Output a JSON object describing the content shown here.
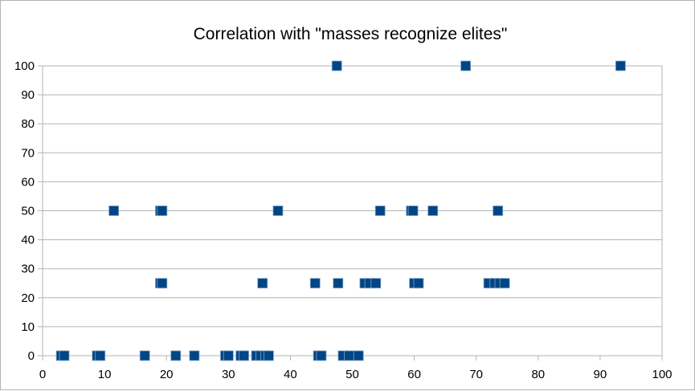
{
  "chart_data": {
    "type": "scatter",
    "title": "Correlation with \"masses recognize elites\"",
    "xlabel": "",
    "ylabel": "",
    "xlim": [
      0,
      100
    ],
    "ylim": [
      0,
      100
    ],
    "x_ticks": [
      0,
      10,
      20,
      30,
      40,
      50,
      60,
      70,
      80,
      90,
      100
    ],
    "y_ticks": [
      0,
      10,
      20,
      30,
      40,
      50,
      60,
      70,
      80,
      90,
      100
    ],
    "grid": "horizontal",
    "legend": "none",
    "marker": "square",
    "series": [
      {
        "color": "#004586",
        "points": [
          [
            3,
            0
          ],
          [
            3.5,
            0
          ],
          [
            8.8,
            0
          ],
          [
            9.3,
            0
          ],
          [
            16.5,
            0
          ],
          [
            21.5,
            0
          ],
          [
            24.5,
            0
          ],
          [
            29.5,
            0
          ],
          [
            30,
            0
          ],
          [
            32,
            0
          ],
          [
            32.5,
            0
          ],
          [
            34.5,
            0
          ],
          [
            35.2,
            0
          ],
          [
            36,
            0
          ],
          [
            36.5,
            0
          ],
          [
            44.5,
            0
          ],
          [
            45,
            0
          ],
          [
            48.5,
            0
          ],
          [
            49.5,
            0
          ],
          [
            51,
            0
          ],
          [
            19,
            25
          ],
          [
            19.3,
            25
          ],
          [
            35.5,
            25
          ],
          [
            44,
            25
          ],
          [
            47.7,
            25
          ],
          [
            52,
            25
          ],
          [
            52.8,
            25
          ],
          [
            53.8,
            25
          ],
          [
            60,
            25
          ],
          [
            60.7,
            25
          ],
          [
            72,
            25
          ],
          [
            73,
            25
          ],
          [
            73.8,
            25
          ],
          [
            74.6,
            25
          ],
          [
            11.5,
            50
          ],
          [
            19,
            50
          ],
          [
            19.3,
            50
          ],
          [
            38,
            50
          ],
          [
            54.5,
            50
          ],
          [
            59.5,
            50
          ],
          [
            59.8,
            50
          ],
          [
            63,
            50
          ],
          [
            73.5,
            50
          ],
          [
            47.5,
            100
          ],
          [
            68.3,
            100
          ],
          [
            93.3,
            100
          ]
        ]
      }
    ]
  }
}
